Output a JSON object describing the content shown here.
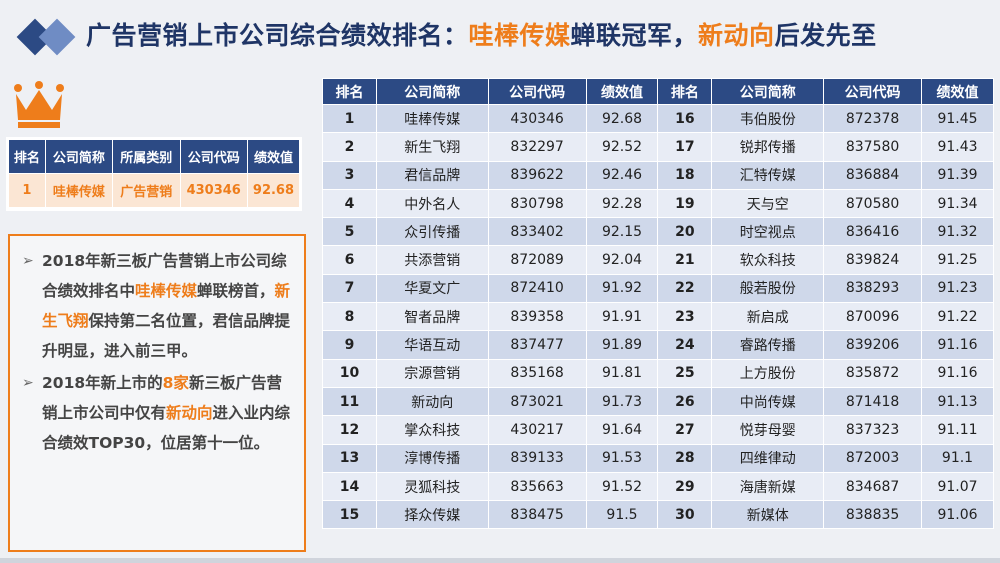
{
  "title": {
    "part1": "广告营销上市公司综合绩效排名：",
    "hl1": "哇棒传媒",
    "part2": "蝉联冠军，",
    "hl2": "新动向",
    "part3": "后发先至"
  },
  "colors": {
    "navy": "#2c4a84",
    "orange": "#ee7d1b",
    "title": "#1f3566"
  },
  "top_table": {
    "headers": [
      "排名",
      "公司简称",
      "所属类别",
      "公司代码",
      "绩效值"
    ],
    "row": [
      "1",
      "哇棒传媒",
      "广告营销",
      "430346",
      "92.68"
    ]
  },
  "text": {
    "b1_a": "2018年新三板广告营销上市公司综合绩效排名中",
    "b1_hl1": "哇棒传媒",
    "b1_b": "蝉联榜首，",
    "b1_hl2": "新生飞翔",
    "b1_c": "保持第二名位置，君信品牌提升明显，进入前三甲。",
    "b2_a": "2018年新上市的",
    "b2_hl1": "8家",
    "b2_b": "新三板广告营销上市公司中仅有",
    "b2_hl2": "新动向",
    "b2_c": "进入业内综合绩效TOP30，位居第十一位。"
  },
  "main_table": {
    "headers": [
      "排名",
      "公司简称",
      "公司代码",
      "绩效值",
      "排名",
      "公司简称",
      "公司代码",
      "绩效值"
    ],
    "rows": [
      [
        "1",
        "哇棒传媒",
        "430346",
        "92.68",
        "16",
        "韦伯股份",
        "872378",
        "91.45"
      ],
      [
        "2",
        "新生飞翔",
        "832297",
        "92.52",
        "17",
        "锐邦传播",
        "837580",
        "91.43"
      ],
      [
        "3",
        "君信品牌",
        "839622",
        "92.46",
        "18",
        "汇特传媒",
        "836884",
        "91.39"
      ],
      [
        "4",
        "中外名人",
        "830798",
        "92.28",
        "19",
        "天与空",
        "870580",
        "91.34"
      ],
      [
        "5",
        "众引传播",
        "833402",
        "92.15",
        "20",
        "时空视点",
        "836416",
        "91.32"
      ],
      [
        "6",
        "共添营销",
        "872089",
        "92.04",
        "21",
        "软众科技",
        "839824",
        "91.25"
      ],
      [
        "7",
        "华夏文广",
        "872410",
        "91.92",
        "22",
        "般若股份",
        "838293",
        "91.23"
      ],
      [
        "8",
        "智者品牌",
        "839358",
        "91.91",
        "23",
        "新启成",
        "870096",
        "91.22"
      ],
      [
        "9",
        "华语互动",
        "837477",
        "91.89",
        "24",
        "睿路传播",
        "839206",
        "91.16"
      ],
      [
        "10",
        "宗源营销",
        "835168",
        "91.81",
        "25",
        "上方股份",
        "835872",
        "91.16"
      ],
      [
        "11",
        "新动向",
        "873021",
        "91.73",
        "26",
        "中尚传媒",
        "871418",
        "91.13"
      ],
      [
        "12",
        "掌众科技",
        "430217",
        "91.64",
        "27",
        "悦芽母婴",
        "837323",
        "91.11"
      ],
      [
        "13",
        "淳博传播",
        "839133",
        "91.53",
        "28",
        "四维律动",
        "872003",
        "91.1"
      ],
      [
        "14",
        "灵狐科技",
        "835663",
        "91.52",
        "29",
        "海唐新媒",
        "834687",
        "91.07"
      ],
      [
        "15",
        "择众传媒",
        "838475",
        "91.5",
        "30",
        "新媒体",
        "838835",
        "91.06"
      ]
    ]
  },
  "icons": {
    "logo": "diamond-logo-icon",
    "crown": "crown-icon",
    "bullet": "arrow-bullet-icon"
  }
}
